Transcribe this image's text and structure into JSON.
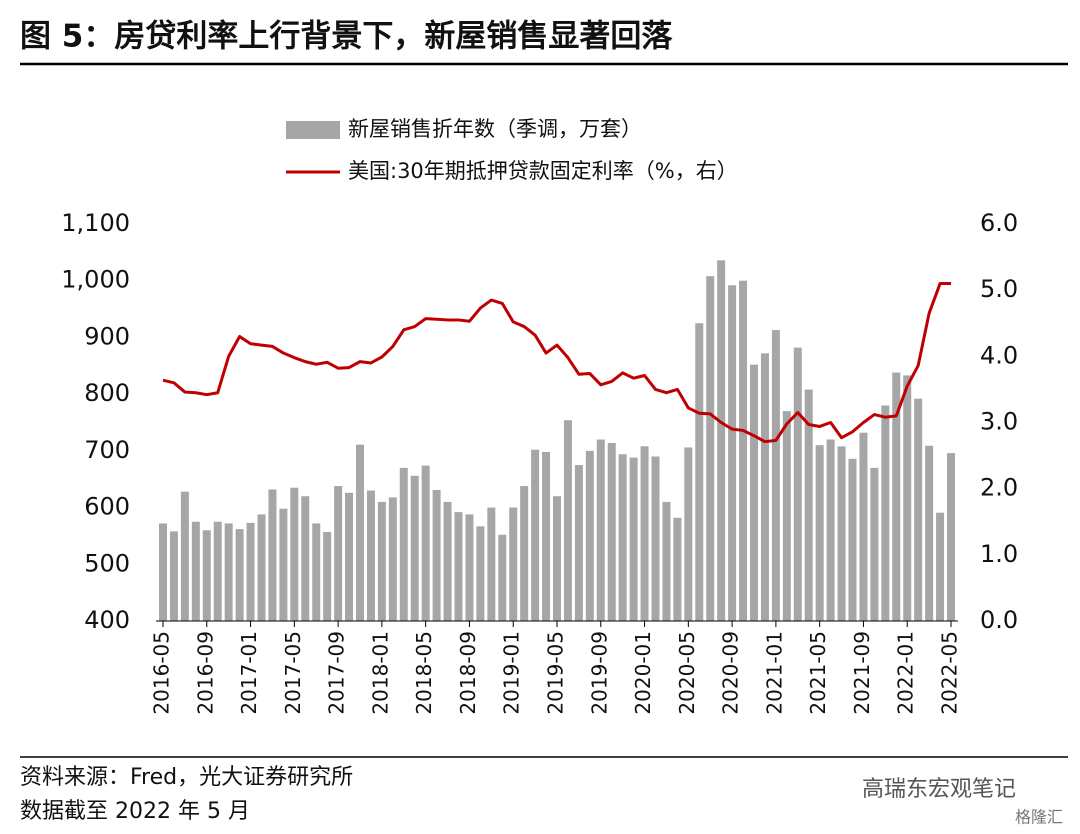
{
  "chart_data": {
    "type": "bar-line",
    "title": "图 5：房贷利率上行背景下，新屋销售显著回落",
    "categories": [
      "2016-05",
      null,
      null,
      null,
      "2016-09",
      null,
      null,
      null,
      "2017-01",
      null,
      null,
      null,
      "2017-05",
      null,
      null,
      null,
      "2017-09",
      null,
      null,
      null,
      "2018-01",
      null,
      null,
      null,
      "2018-05",
      null,
      null,
      null,
      "2018-09",
      null,
      null,
      null,
      "2019-01",
      null,
      null,
      null,
      "2019-05",
      null,
      null,
      null,
      "2019-09",
      null,
      null,
      null,
      "2020-01",
      null,
      null,
      null,
      "2020-05",
      null,
      null,
      null,
      "2020-09",
      null,
      null,
      null,
      "2021-01",
      null,
      null,
      null,
      "2021-05",
      null,
      null,
      null,
      "2021-09",
      null,
      null,
      null,
      "2022-01",
      null,
      null,
      null,
      "2022-05"
    ],
    "series": [
      {
        "name": "新屋销售折年数（季调，万套）",
        "type": "bar",
        "color": "#a6a6a6",
        "values": [
          572,
          558,
          628,
          575,
          560,
          575,
          572,
          562,
          573,
          588,
          632,
          598,
          635,
          620,
          572,
          557,
          638,
          626,
          711,
          630,
          610,
          618,
          670,
          656,
          674,
          631,
          610,
          592,
          588,
          567,
          600,
          552,
          600,
          638,
          702,
          698,
          620,
          754,
          675,
          700,
          720,
          714,
          694,
          688,
          708,
          690,
          610,
          582,
          706,
          925,
          1008,
          1036,
          992,
          1000,
          852,
          872,
          913,
          770,
          882,
          808,
          710,
          720,
          708,
          686,
          732,
          670,
          780,
          838,
          833,
          792,
          709,
          591,
          696
        ]
      },
      {
        "name": "美国:30年期抵押贷款固定利率（%，右）",
        "type": "line",
        "axis": "y2",
        "color": "#c00000",
        "values": [
          3.64,
          3.6,
          3.46,
          3.45,
          3.42,
          3.45,
          4.0,
          4.3,
          4.19,
          4.17,
          4.15,
          4.05,
          3.98,
          3.92,
          3.88,
          3.91,
          3.82,
          3.83,
          3.92,
          3.9,
          3.99,
          4.15,
          4.4,
          4.45,
          4.57,
          4.56,
          4.55,
          4.55,
          4.53,
          4.73,
          4.85,
          4.8,
          4.52,
          4.45,
          4.32,
          4.05,
          4.17,
          3.98,
          3.73,
          3.74,
          3.57,
          3.62,
          3.75,
          3.67,
          3.71,
          3.5,
          3.45,
          3.5,
          3.22,
          3.14,
          3.13,
          3.0,
          2.9,
          2.88,
          2.8,
          2.71,
          2.73,
          2.98,
          3.15,
          2.97,
          2.94,
          3.0,
          2.77,
          2.86,
          3.0,
          3.12,
          3.08,
          3.1,
          3.55,
          3.86,
          4.65,
          5.1,
          5.1
        ]
      }
    ],
    "ylim": [
      400,
      1100
    ],
    "yticks": [
      400,
      500,
      600,
      700,
      800,
      900,
      {
        "value": 1000,
        "label": "1,000"
      },
      {
        "value": 1100,
        "label": "1,100"
      }
    ],
    "y2lim": [
      0,
      6
    ],
    "y2ticks": [
      {
        "value": 0,
        "label": "0.0"
      },
      {
        "value": 1,
        "label": "1.0"
      },
      {
        "value": 2,
        "label": "2.0"
      },
      {
        "value": 3,
        "label": "3.0"
      },
      {
        "value": 4,
        "label": "4.0"
      },
      {
        "value": 5,
        "label": "5.0"
      },
      {
        "value": 6,
        "label": "6.0"
      }
    ],
    "legend": "top",
    "source": "资料来源：Fred，光大证券研究所",
    "note": "数据截至 2022 年 5 月",
    "watermark": "高瑞东宏观笔记",
    "watermark2": "格隆汇"
  }
}
